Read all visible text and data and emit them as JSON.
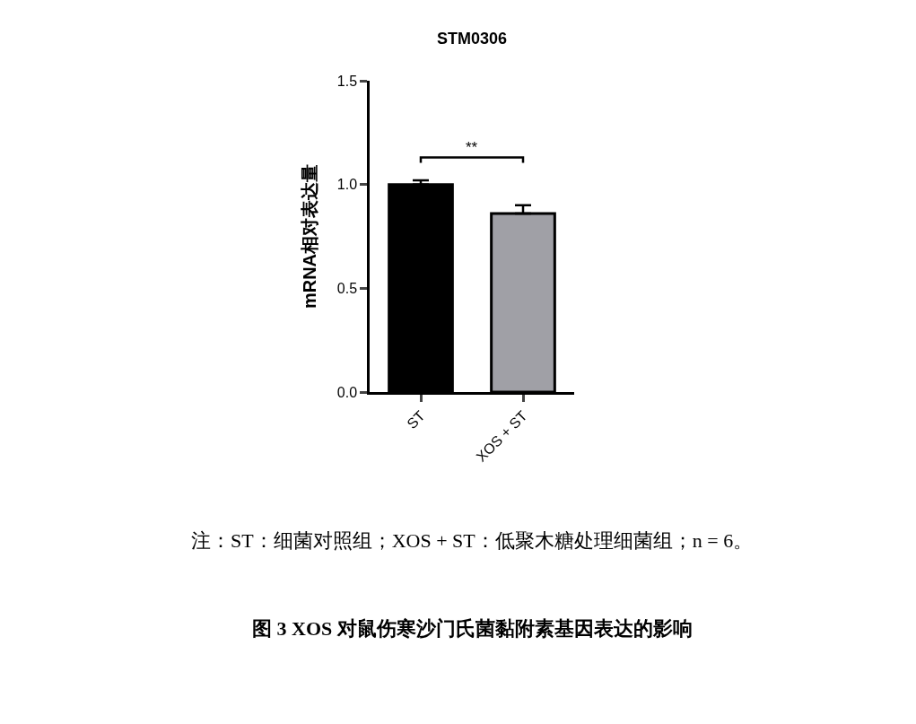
{
  "chart_data": {
    "type": "bar",
    "title": "STM0306",
    "ylabel": "mRNA相对表达量",
    "categories": [
      "ST",
      "XOS + ST"
    ],
    "values": [
      1.0,
      0.86
    ],
    "colors": [
      "#000000",
      "#a0a0a6"
    ],
    "errors": [
      [
        1.0,
        1.02
      ],
      [
        0.86,
        0.9
      ]
    ],
    "ylim": [
      0,
      1.5
    ],
    "yticks": [
      {
        "value": 0,
        "label": "0.0"
      },
      0.5,
      {
        "value": 1,
        "label": "1.0"
      },
      1.5
    ],
    "grid": false,
    "annotations": [
      "**",
      "注：ST：细菌对照组；XOS + ST：低聚木糖处理细菌组；n = 6。",
      "图 3 XOS 对鼠伤寒沙门氏菌黏附素基因表达的影响"
    ]
  }
}
